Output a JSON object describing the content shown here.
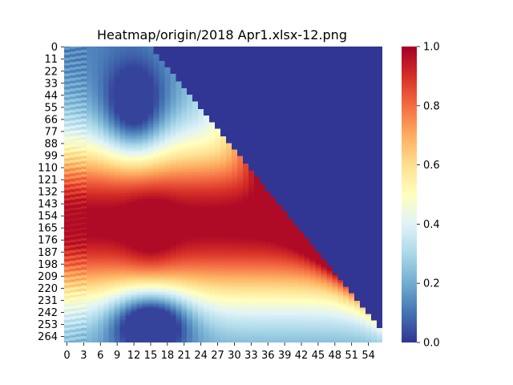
{
  "chart_data": {
    "type": "heatmap",
    "title": "Heatmap/origin/2018 Apr1.xlsx-12.png",
    "n_rows": 270,
    "n_cols": 57,
    "y_tick_labels": [
      "0",
      "11",
      "22",
      "33",
      "44",
      "55",
      "66",
      "77",
      "88",
      "99",
      "110",
      "121",
      "132",
      "143",
      "154",
      "165",
      "176",
      "187",
      "198",
      "209",
      "220",
      "231",
      "242",
      "253",
      "264"
    ],
    "x_tick_labels": [
      "0",
      "3",
      "6",
      "9",
      "12",
      "15",
      "18",
      "21",
      "24",
      "27",
      "30",
      "33",
      "36",
      "39",
      "42",
      "45",
      "48",
      "51",
      "54"
    ],
    "colorbar": {
      "colormap": "RdYlBu_r",
      "vmin": 0.0,
      "vmax": 1.0,
      "tick_labels": [
        "0.0",
        "0.2",
        "0.4",
        "0.6",
        "0.8",
        "1.0"
      ]
    },
    "masked_region": "upper-right triangle (above diagonal) filled with value 0.0",
    "colors": {
      "low": "#313695",
      "mid": "#ffffbf",
      "high": "#a50026"
    }
  }
}
